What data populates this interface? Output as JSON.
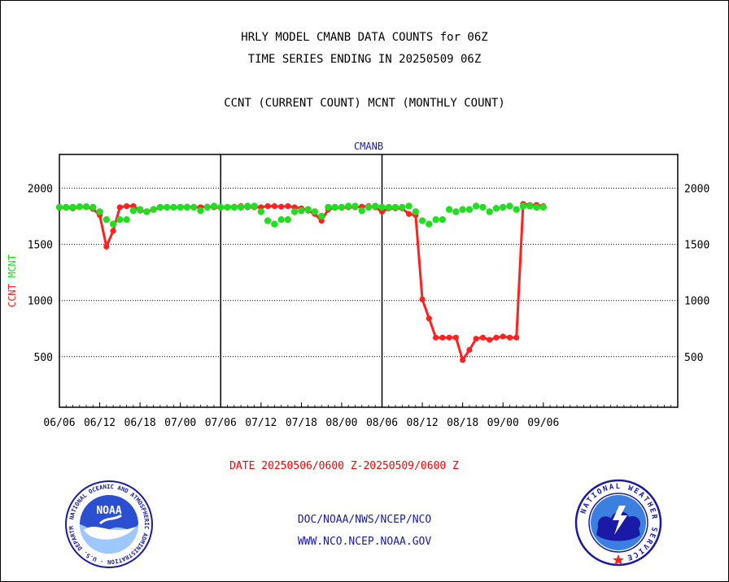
{
  "header": {
    "title_line1": "HRLY MODEL CMANB DATA COUNTS for 06Z",
    "title_line2": "TIME SERIES ENDING IN 20250509 06Z",
    "subtitle": "CCNT (CURRENT COUNT) MCNT (MONTHLY COUNT)"
  },
  "footer": {
    "date_range": "DATE 20250506/0600 Z-20250509/0600 Z",
    "org_line": "DOC/NOAA/NWS/NCEP/NCO",
    "url_line": "WWW.NCO.NCEP.NOAA.GOV"
  },
  "logos": {
    "noaa_text": "NOAA",
    "noaa_ring": "NATIONAL OCEANIC AND ATMOSPHERIC ADMINISTRATION · U.S. DEPARTMENT OF COMMERCE",
    "nws_ring": "NATIONAL WEATHER SERVICE"
  },
  "colors": {
    "ccnt": "#ff2020",
    "mcnt": "#22dd22",
    "label_blue": "#1a1aa6",
    "date_red": "#ff0000"
  },
  "chart_data": {
    "type": "line",
    "title": "CMANB",
    "ylabel_ccnt": "CCNT",
    "ylabel_mcnt": "MCNT",
    "ylim": [
      50,
      2300
    ],
    "yticks": [
      500,
      1000,
      1500,
      2000
    ],
    "xlim": [
      0,
      92
    ],
    "xticks": [
      {
        "x": 0,
        "label": "06/06"
      },
      {
        "x": 6,
        "label": "06/12"
      },
      {
        "x": 12,
        "label": "06/18"
      },
      {
        "x": 18,
        "label": "07/00"
      },
      {
        "x": 24,
        "label": "07/06"
      },
      {
        "x": 30,
        "label": "07/12"
      },
      {
        "x": 36,
        "label": "07/18"
      },
      {
        "x": 42,
        "label": "08/00"
      },
      {
        "x": 48,
        "label": "08/06"
      },
      {
        "x": 54,
        "label": "08/12"
      },
      {
        "x": 60,
        "label": "08/18"
      },
      {
        "x": 66,
        "label": "09/00"
      },
      {
        "x": 72,
        "label": "09/06"
      }
    ],
    "day_dividers": [
      24,
      48
    ],
    "grid": "horizontal dotted",
    "series": [
      {
        "name": "CCNT",
        "color": "#ff2020",
        "x": [
          0,
          1,
          2,
          3,
          4,
          5,
          6,
          7,
          8,
          9,
          10,
          11,
          12,
          13,
          14,
          15,
          16,
          17,
          18,
          19,
          20,
          21,
          22,
          23,
          24,
          25,
          26,
          27,
          28,
          29,
          30,
          31,
          32,
          33,
          34,
          35,
          36,
          37,
          38,
          39,
          40,
          41,
          42,
          43,
          44,
          45,
          46,
          47,
          48,
          49,
          50,
          51,
          52,
          53,
          54,
          55,
          56,
          57,
          58,
          59,
          60,
          61,
          62,
          63,
          64,
          65,
          66,
          67,
          68,
          69,
          70,
          71,
          72
        ],
        "values": [
          1825,
          1825,
          1820,
          1830,
          1830,
          1815,
          1760,
          1480,
          1620,
          1830,
          1840,
          1840,
          1800,
          1790,
          1810,
          1825,
          1830,
          1830,
          1830,
          1835,
          1830,
          1830,
          1835,
          1830,
          1825,
          1830,
          1835,
          1840,
          1830,
          1830,
          1830,
          1840,
          1840,
          1835,
          1840,
          1830,
          1820,
          1800,
          1770,
          1710,
          1810,
          1825,
          1825,
          1830,
          1830,
          1835,
          1840,
          1830,
          1790,
          1820,
          1820,
          1820,
          1770,
          1760,
          1010,
          840,
          670,
          670,
          670,
          670,
          470,
          560,
          660,
          670,
          650,
          670,
          680,
          670,
          670,
          1860,
          1850,
          1850,
          1840
        ]
      },
      {
        "name": "MCNT",
        "color": "#22dd22",
        "x": [
          0,
          1,
          2,
          3,
          4,
          5,
          6,
          7,
          8,
          9,
          10,
          11,
          12,
          13,
          14,
          15,
          16,
          17,
          18,
          19,
          20,
          21,
          22,
          23,
          24,
          25,
          26,
          27,
          28,
          29,
          30,
          31,
          32,
          33,
          34,
          35,
          36,
          37,
          38,
          39,
          40,
          41,
          42,
          43,
          44,
          45,
          46,
          47,
          48,
          49,
          50,
          51,
          52,
          53,
          54,
          55,
          56,
          57,
          58,
          59,
          60,
          61,
          62,
          63,
          64,
          65,
          66,
          67,
          68,
          69,
          70,
          71,
          72
        ],
        "values": [
          1830,
          1830,
          1830,
          1835,
          1835,
          1830,
          1790,
          1720,
          1680,
          1720,
          1720,
          1800,
          1810,
          1790,
          1810,
          1830,
          1830,
          1830,
          1830,
          1830,
          1830,
          1800,
          1830,
          1840,
          1830,
          1830,
          1830,
          1830,
          1840,
          1840,
          1790,
          1710,
          1680,
          1720,
          1720,
          1790,
          1800,
          1810,
          1790,
          1750,
          1830,
          1830,
          1830,
          1840,
          1840,
          1800,
          1830,
          1840,
          1830,
          1830,
          1830,
          1830,
          1840,
          1790,
          1710,
          1680,
          1720,
          1720,
          1810,
          1790,
          1810,
          1810,
          1840,
          1830,
          1790,
          1820,
          1830,
          1840,
          1810,
          1840,
          1840,
          1830,
          1830
        ]
      }
    ]
  }
}
